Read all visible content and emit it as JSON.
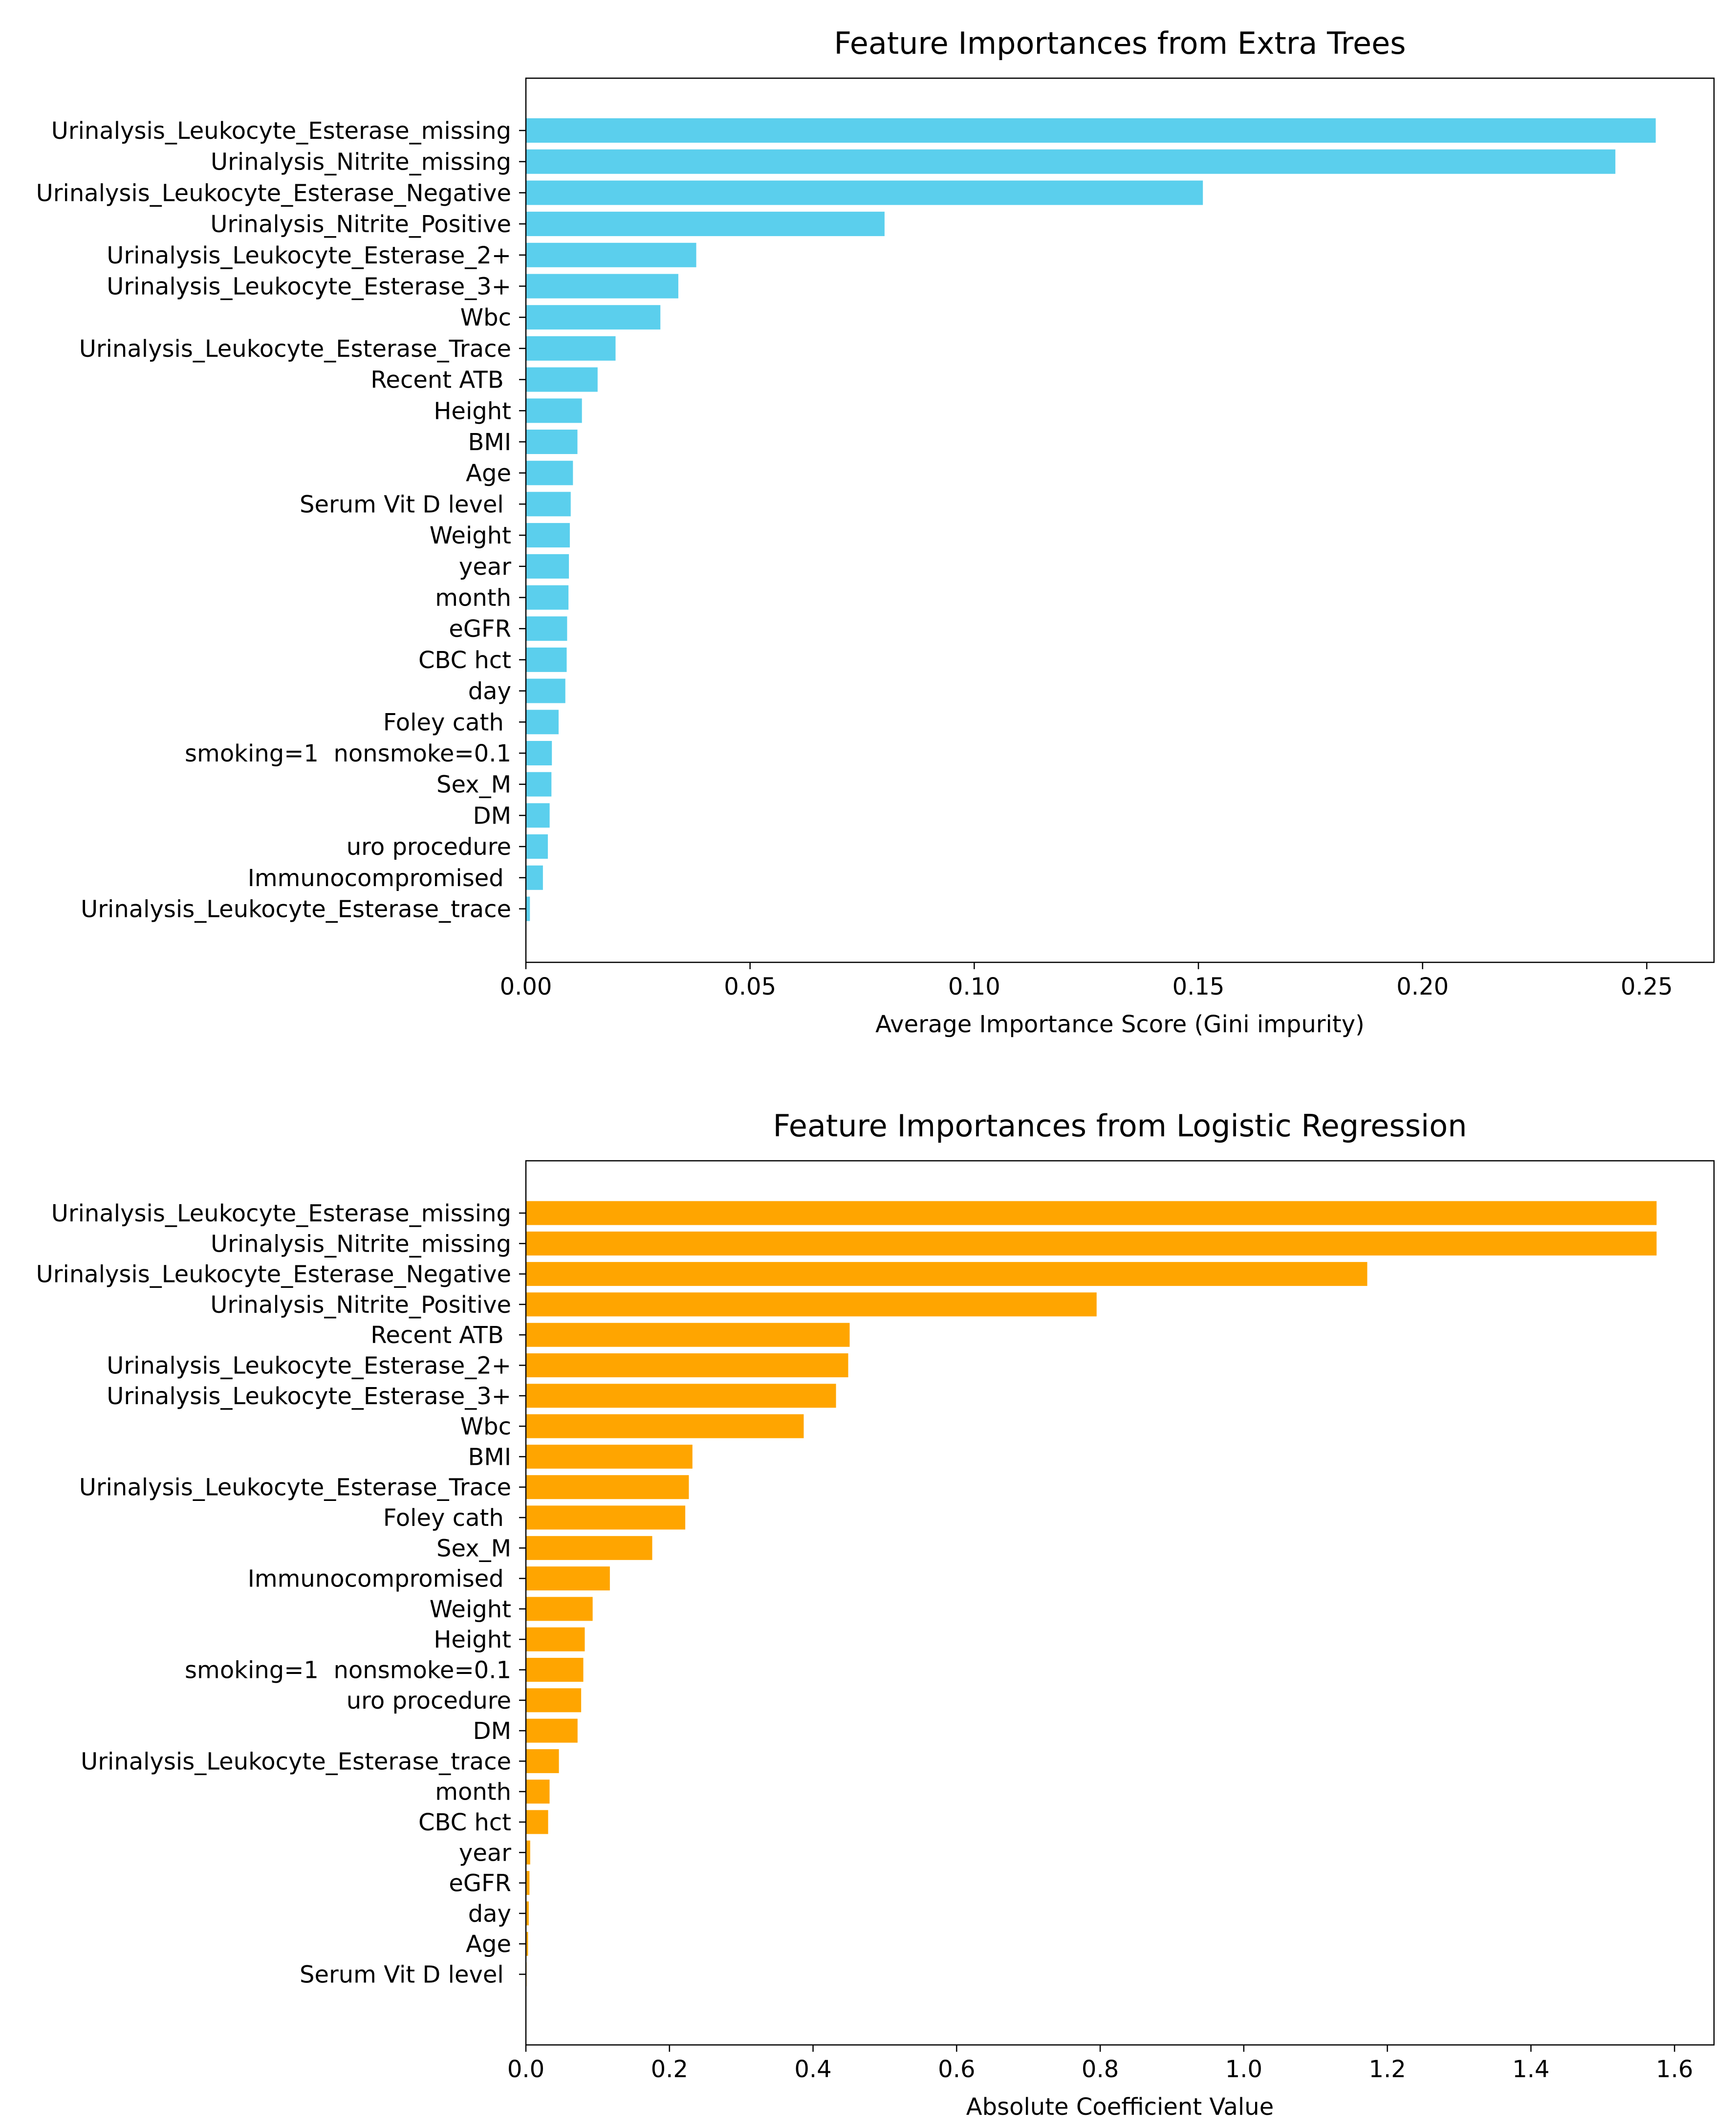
{
  "chart_data": [
    {
      "type": "bar",
      "orientation": "horizontal",
      "title": "Feature Importances from Extra Trees",
      "xlabel": "Average Importance Score (Gini impurity)",
      "ylabel": "",
      "xlim": [
        0,
        0.265
      ],
      "xticks": [
        0.0,
        0.05,
        0.1,
        0.15,
        0.2,
        0.25
      ],
      "xtick_labels": [
        "0.00",
        "0.05",
        "0.10",
        "0.15",
        "0.20",
        "0.25"
      ],
      "grid": false,
      "color": "#5bcfed",
      "categories": [
        "Urinalysis_Leukocyte_Esterase_missing",
        "Urinalysis_Nitrite_missing",
        "Urinalysis_Leukocyte_Esterase_Negative",
        "Urinalysis_Nitrite_Positive",
        "Urinalysis_Leukocyte_Esterase_2+",
        "Urinalysis_Leukocyte_Esterase_3+",
        "Wbc",
        "Urinalysis_Leukocyte_Esterase_Trace",
        "Recent ATB ",
        "Height",
        "BMI",
        "Age",
        "Serum Vit D level ",
        "Weight",
        "year",
        "month",
        "eGFR",
        "CBC hct",
        "day",
        "Foley cath ",
        "smoking=1  nonsmoke=0.1",
        "Sex_M",
        "DM",
        "uro procedure",
        "Immunocompromised ",
        "Urinalysis_Leukocyte_Esterase_trace"
      ],
      "values": [
        0.252,
        0.243,
        0.151,
        0.08,
        0.038,
        0.034,
        0.03,
        0.02,
        0.016,
        0.0125,
        0.0115,
        0.0105,
        0.01,
        0.0098,
        0.0096,
        0.0095,
        0.0092,
        0.0091,
        0.0088,
        0.0073,
        0.0058,
        0.0057,
        0.0053,
        0.0049,
        0.0038,
        0.0009
      ]
    },
    {
      "type": "bar",
      "orientation": "horizontal",
      "title": "Feature Importances from Logistic Regression",
      "xlabel": "Absolute Coefficient Value",
      "ylabel": "",
      "xlim": [
        0,
        1.655
      ],
      "xticks": [
        0.0,
        0.2,
        0.4,
        0.6,
        0.8,
        1.0,
        1.2,
        1.4,
        1.6
      ],
      "xtick_labels": [
        "0.0",
        "0.2",
        "0.4",
        "0.6",
        "0.8",
        "1.0",
        "1.2",
        "1.4",
        "1.6"
      ],
      "grid": false,
      "color": "#ffa500",
      "categories": [
        "Urinalysis_Leukocyte_Esterase_missing",
        "Urinalysis_Nitrite_missing",
        "Urinalysis_Leukocyte_Esterase_Negative",
        "Urinalysis_Nitrite_Positive",
        "Recent ATB ",
        "Urinalysis_Leukocyte_Esterase_2+",
        "Urinalysis_Leukocyte_Esterase_3+",
        "Wbc",
        "BMI",
        "Urinalysis_Leukocyte_Esterase_Trace",
        "Foley cath ",
        "Sex_M",
        "Immunocompromised ",
        "Weight",
        "Height",
        "smoking=1  nonsmoke=0.1",
        "uro procedure",
        "DM",
        "Urinalysis_Leukocyte_Esterase_trace",
        "month",
        "CBC hct",
        "year",
        "eGFR",
        "day",
        "Age",
        "Serum Vit D level "
      ],
      "values": [
        1.575,
        1.575,
        1.172,
        0.795,
        0.451,
        0.449,
        0.432,
        0.387,
        0.232,
        0.227,
        0.222,
        0.176,
        0.117,
        0.093,
        0.082,
        0.08,
        0.077,
        0.072,
        0.046,
        0.033,
        0.031,
        0.006,
        0.005,
        0.004,
        0.003,
        0.001
      ]
    }
  ]
}
